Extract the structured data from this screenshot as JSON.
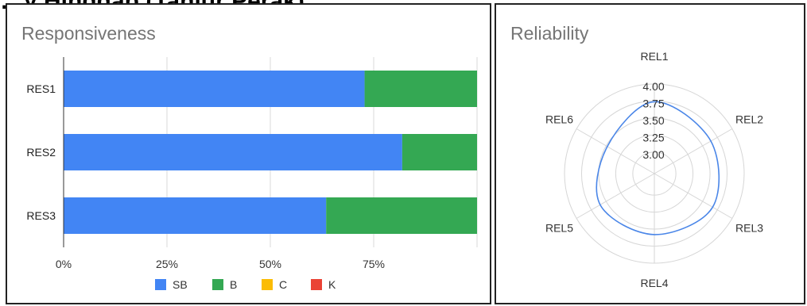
{
  "page_heading": "…y Hinggap (Tanjur Perak)",
  "chart_data": [
    {
      "type": "bar",
      "orientation": "horizontal",
      "stacked": "percent",
      "title": "Responsiveness",
      "categories": [
        "RES1",
        "RES2",
        "RES3"
      ],
      "series": [
        {
          "name": "SB",
          "color": "#4285f4",
          "values": [
            72.8,
            81.9,
            63.5
          ]
        },
        {
          "name": "B",
          "color": "#34a853",
          "values": [
            27.2,
            18.1,
            36.5
          ]
        },
        {
          "name": "C",
          "color": "#fbbc04",
          "values": [
            0,
            0,
            0
          ]
        },
        {
          "name": "K",
          "color": "#ea4335",
          "values": [
            0,
            0,
            0
          ]
        }
      ],
      "x_ticks": [
        "0%",
        "25%",
        "50%",
        "75%"
      ],
      "xlim": [
        0,
        100
      ],
      "grid": true,
      "legend_position": "bottom"
    },
    {
      "type": "radar",
      "title": "Reliability",
      "categories": [
        "REL1",
        "REL2",
        "REL3",
        "REL4",
        "REL5",
        "REL6"
      ],
      "series": [
        {
          "color": "#4a86e8",
          "values": [
            3.74,
            3.64,
            3.67,
            3.58,
            3.6,
            3.48
          ]
        }
      ],
      "r_ticks": [
        "3.00",
        "3.25",
        "3.50",
        "3.75",
        "4.00"
      ],
      "rlim": [
        3.0,
        4.0
      ],
      "grid": true
    }
  ]
}
